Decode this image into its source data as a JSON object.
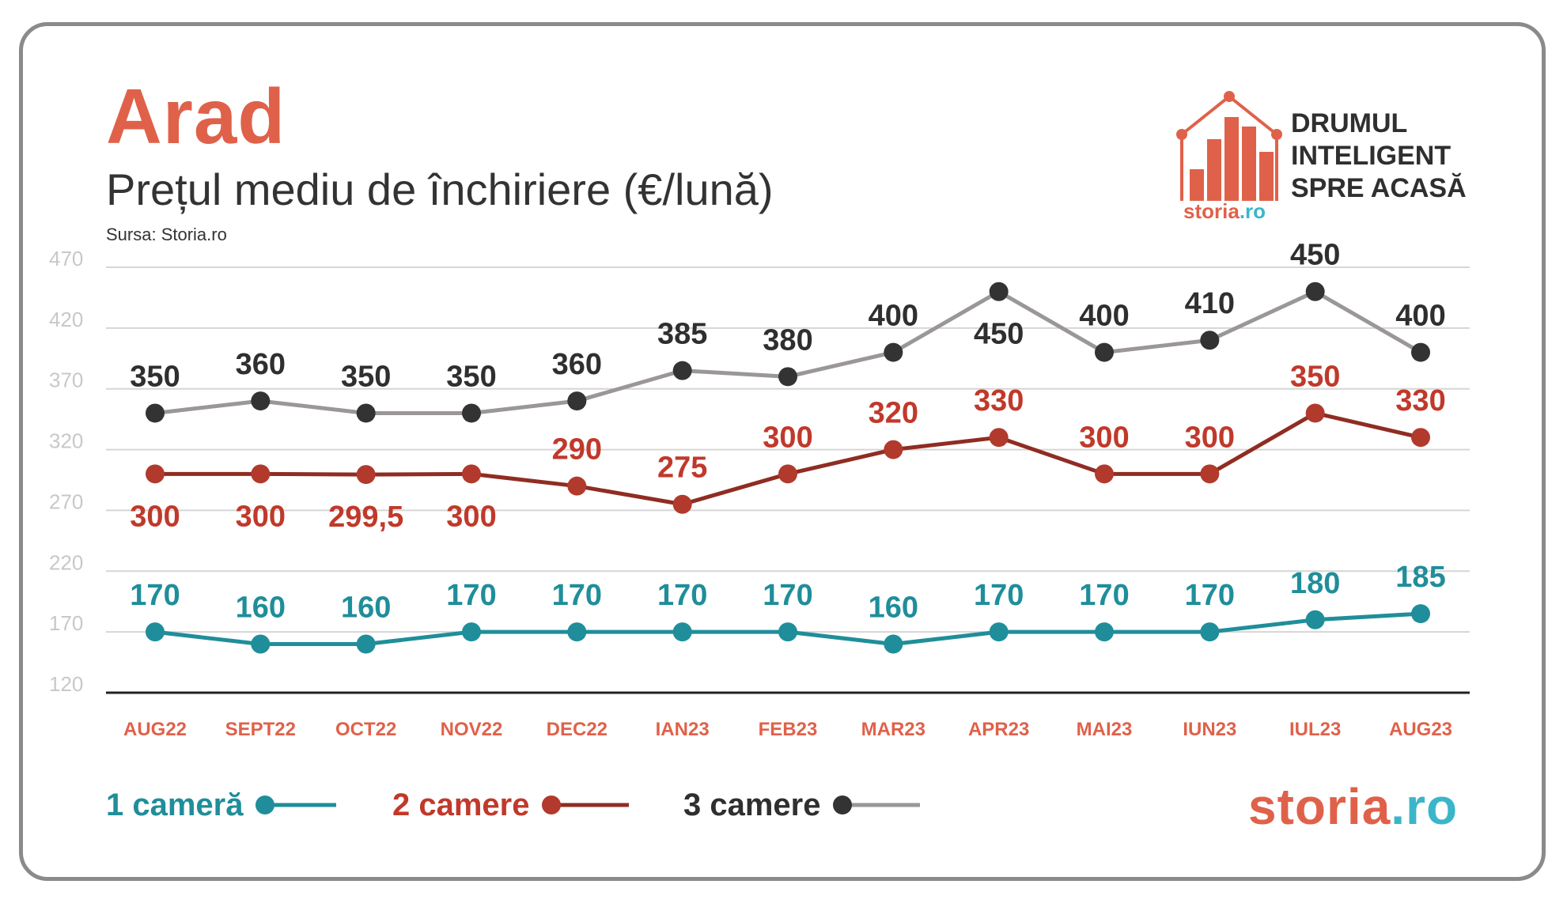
{
  "header": {
    "title": "Arad",
    "subtitle": "Prețul mediu de închiriere (€/lună)",
    "source": "Sursa: Storia.ro"
  },
  "brand": {
    "tagline": [
      "DRUMUL",
      "INTELIGENT",
      "SPRE ACASĂ"
    ],
    "logo_small_main": "storia",
    "logo_small_tld": ".ro",
    "logo_big_main": "storia",
    "logo_big_tld": ".ro",
    "logo_icon": "house-bar-chart-icon"
  },
  "colors": {
    "accent": "#e0614a",
    "teal": "#1f8e9a",
    "dark_red": "#8f2d22",
    "gray_line": "#9a9699",
    "dark_point": "#333333",
    "red_label": "#c0392b",
    "logo_tld": "#3bb6c9"
  },
  "chart_data": {
    "type": "line",
    "categories": [
      "AUG22",
      "SEPT22",
      "OCT22",
      "NOV22",
      "DEC22",
      "IAN23",
      "FEB23",
      "MAR23",
      "APR23",
      "MAI23",
      "IUN23",
      "IUL23",
      "AUG23"
    ],
    "ylim": [
      120,
      470
    ],
    "yticks": [
      "470",
      "420",
      "370",
      "320",
      "270",
      "220",
      "170",
      "120"
    ],
    "grid": true,
    "legend_position": "bottom-left",
    "series": [
      {
        "name": "1 cameră",
        "values": [
          170,
          160,
          160,
          170,
          170,
          170,
          170,
          160,
          170,
          170,
          170,
          180,
          185
        ],
        "labels": [
          "170",
          "160",
          "160",
          "170",
          "170",
          "170",
          "170",
          "160",
          "170",
          "170",
          "170",
          "180",
          "185"
        ],
        "line_color": "#1f8e9a",
        "point_color": "#1f8e9a",
        "label_color": "#1f8e9a",
        "label_side": "above"
      },
      {
        "name": "2 camere",
        "values": [
          300,
          300,
          299.5,
          300,
          290,
          275,
          300,
          320,
          330,
          300,
          300,
          350,
          330
        ],
        "labels": [
          "300",
          "300",
          "299,5",
          "300",
          "290",
          "275",
          "300",
          "320",
          "330",
          "300",
          "300",
          "350",
          "330"
        ],
        "line_color": "#8f2d22",
        "point_color": "#b13a2d",
        "label_color": "#c0392b",
        "label_side": [
          "below",
          "below",
          "below",
          "below",
          "above",
          "above",
          "above",
          "above",
          "above",
          "above",
          "above",
          "above",
          "above"
        ]
      },
      {
        "name": "3 camere",
        "values": [
          350,
          360,
          350,
          350,
          360,
          385,
          380,
          400,
          450,
          400,
          410,
          450,
          400
        ],
        "labels": [
          "350",
          "360",
          "350",
          "350",
          "360",
          "385",
          "380",
          "400",
          "450",
          "400",
          "410",
          "450",
          "400"
        ],
        "line_color": "#9a9699",
        "point_color": "#333333",
        "label_color": "#2f2f2f",
        "label_side": [
          "above",
          "above",
          "above",
          "above",
          "above",
          "above",
          "above",
          "above",
          "below",
          "above",
          "above",
          "above",
          "above"
        ]
      }
    ]
  }
}
